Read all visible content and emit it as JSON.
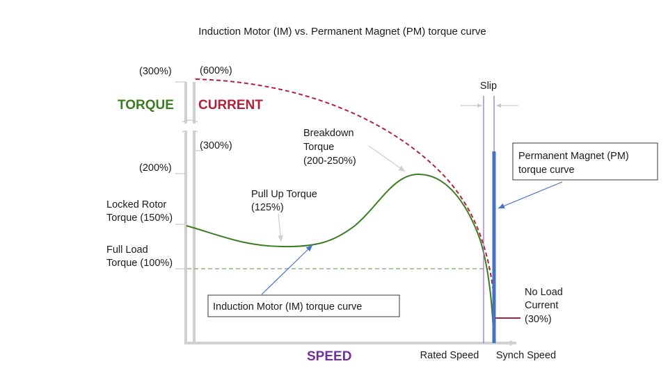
{
  "title": "Induction Motor (IM) vs. Permanent Magnet (PM) torque curve",
  "axis_labels": {
    "torque": "TORQUE",
    "current": "CURRENT",
    "speed": "SPEED"
  },
  "torque_ticks": {
    "t300": "(300%)",
    "t200": "(200%)"
  },
  "current_ticks": {
    "c600": "(600%)",
    "c300": "(300%)"
  },
  "speed_ticks": {
    "rated": "Rated Speed",
    "synch": "Synch Speed"
  },
  "annotations": {
    "locked_rotor": [
      "Locked Rotor",
      "Torque (150%)"
    ],
    "full_load": [
      "Full Load",
      "Torque (100%)"
    ],
    "pull_up": [
      "Pull Up Torque",
      "(125%)"
    ],
    "breakdown": [
      "Breakdown",
      "Torque",
      "(200-250%)"
    ],
    "slip": "Slip",
    "no_load_current": [
      "No Load",
      "Current",
      "(30%)"
    ]
  },
  "callouts": {
    "pm": [
      "Permanent Magnet (PM)",
      "torque curve"
    ],
    "im": "Induction Motor (IM) torque curve"
  },
  "colors": {
    "im_curve": "#3a7d1e",
    "current_curve": "#b0203a",
    "pm_curve": "#4472c4",
    "torque_label": "#3a7d1e",
    "current_label": "#b0203a",
    "speed_label": "#7030a0",
    "marker_lines": "#a070d0",
    "full_load_line": "#7aa86a"
  }
}
